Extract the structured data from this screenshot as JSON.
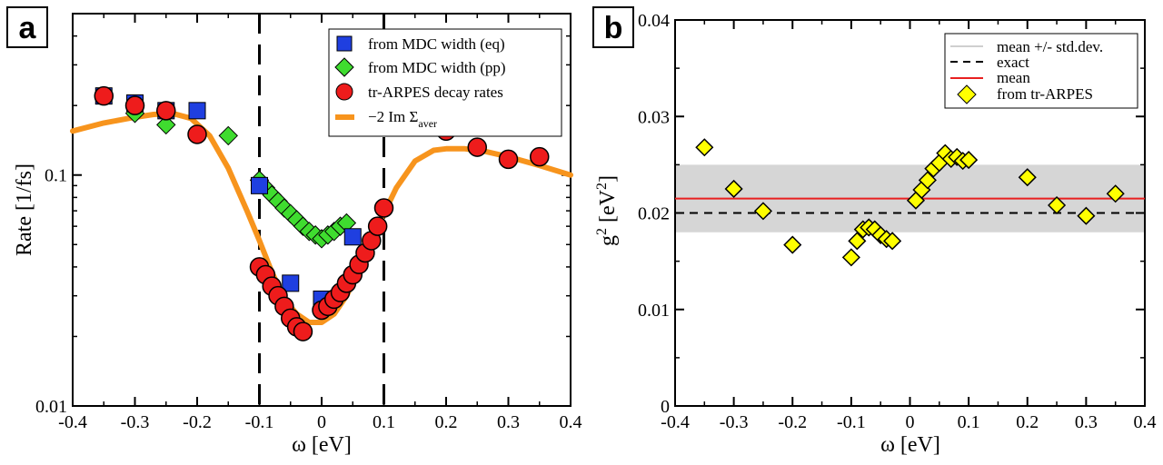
{
  "chart_data": [
    {
      "panel_label": "a",
      "type": "scatter",
      "yscale": "log",
      "xlabel": "ω [eV]",
      "ylabel": "Rate [1/fs]",
      "xlim": [
        -0.4,
        0.4
      ],
      "ylim": [
        0.01,
        0.5
      ],
      "xticks": [
        -0.4,
        -0.3,
        -0.2,
        -0.1,
        0,
        0.1,
        0.2,
        0.3,
        0.4
      ],
      "xtick_labels": [
        "-0.4",
        "-0.3",
        "-0.2",
        "-0.1",
        "0",
        "0.1",
        "0.2",
        "0.3",
        "0.4"
      ],
      "yticks": [
        0.01,
        0.1
      ],
      "ytick_labels": [
        "0.01",
        "0.1"
      ],
      "vlines": [
        -0.1,
        0.1
      ],
      "legend_position": "top-right",
      "series": [
        {
          "name": "from MDC width (eq)",
          "marker": "square",
          "color": "#1f3fe0",
          "x": [
            -0.35,
            -0.3,
            -0.25,
            -0.2,
            -0.1,
            -0.05,
            0.0,
            0.05
          ],
          "y": [
            0.22,
            0.205,
            0.19,
            0.19,
            0.09,
            0.034,
            0.029,
            0.054
          ]
        },
        {
          "name": "from MDC width (pp)",
          "marker": "diamond",
          "color": "#3fdc2f",
          "x": [
            -0.3,
            -0.25,
            -0.15,
            -0.1,
            -0.09,
            -0.08,
            -0.07,
            -0.06,
            -0.05,
            -0.04,
            -0.03,
            -0.02,
            -0.01,
            0.0,
            0.01,
            0.02,
            0.03,
            0.04
          ],
          "y": [
            0.185,
            0.165,
            0.148,
            0.095,
            0.088,
            0.082,
            0.077,
            0.072,
            0.068,
            0.064,
            0.06,
            0.057,
            0.055,
            0.053,
            0.055,
            0.057,
            0.06,
            0.062
          ]
        },
        {
          "name": "tr-ARPES decay rates",
          "marker": "circle",
          "color": "#ee1c1c",
          "x": [
            -0.35,
            -0.3,
            -0.25,
            -0.2,
            -0.1,
            -0.09,
            -0.08,
            -0.07,
            -0.06,
            -0.05,
            -0.04,
            -0.03,
            0.0,
            0.01,
            0.02,
            0.03,
            0.04,
            0.05,
            0.06,
            0.07,
            0.08,
            0.09,
            0.1,
            0.2,
            0.25,
            0.3,
            0.35
          ],
          "y": [
            0.22,
            0.2,
            0.19,
            0.15,
            0.04,
            0.037,
            0.033,
            0.03,
            0.027,
            0.024,
            0.022,
            0.021,
            0.026,
            0.027,
            0.029,
            0.031,
            0.034,
            0.037,
            0.041,
            0.046,
            0.052,
            0.06,
            0.072,
            0.155,
            0.132,
            0.117,
            0.12
          ]
        },
        {
          "name": "−2 Im Σ_aver",
          "marker": "line",
          "color": "#f7941d",
          "x": [
            -0.4,
            -0.35,
            -0.3,
            -0.27,
            -0.24,
            -0.21,
            -0.18,
            -0.15,
            -0.12,
            -0.1,
            -0.08,
            -0.06,
            -0.04,
            -0.02,
            0.0,
            0.02,
            0.04,
            0.06,
            0.08,
            0.1,
            0.12,
            0.15,
            0.18,
            0.2,
            0.23,
            0.26,
            0.3,
            0.35,
            0.4
          ],
          "y": [
            0.155,
            0.168,
            0.178,
            0.183,
            0.185,
            0.176,
            0.148,
            0.107,
            0.07,
            0.052,
            0.038,
            0.029,
            0.025,
            0.023,
            0.023,
            0.025,
            0.03,
            0.039,
            0.052,
            0.068,
            0.088,
            0.115,
            0.128,
            0.13,
            0.13,
            0.127,
            0.12,
            0.11,
            0.1
          ]
        }
      ],
      "legend": {
        "entries": [
          {
            "label": "from MDC width (eq)"
          },
          {
            "label": "from MDC width (pp)"
          },
          {
            "label": "tr-ARPES decay rates"
          },
          {
            "label_main": "−2 Im Σ",
            "label_sub": "aver"
          }
        ]
      }
    },
    {
      "panel_label": "b",
      "type": "scatter",
      "yscale": "linear",
      "xlabel": "ω [eV]",
      "ylabel_base": "g",
      "ylabel_sup": "2",
      "ylabel_mid": " [eV",
      "ylabel_end": "]",
      "xlim": [
        -0.4,
        0.4
      ],
      "ylim": [
        0,
        0.04
      ],
      "xticks": [
        -0.4,
        -0.3,
        -0.2,
        -0.1,
        0,
        0.1,
        0.2,
        0.3,
        0.4
      ],
      "xtick_labels": [
        "-0.4",
        "-0.3",
        "-0.2",
        "-0.1",
        "0",
        "0.1",
        "0.2",
        "0.3",
        "0.4"
      ],
      "yticks": [
        0,
        0.01,
        0.02,
        0.03,
        0.04
      ],
      "ytick_labels": [
        "0",
        "0.01",
        "0.02",
        "0.03",
        "0.04"
      ],
      "band": {
        "name": "mean +/- std.dev.",
        "low": 0.018,
        "high": 0.025,
        "color": "#d6d6d6"
      },
      "exact": {
        "name": "exact",
        "value": 0.02,
        "color": "#000000"
      },
      "mean": {
        "name": "mean",
        "value": 0.0215,
        "color": "#e82020"
      },
      "points": {
        "name": "from tr-ARPES",
        "color": "#ffff00",
        "x": [
          -0.35,
          -0.3,
          -0.25,
          -0.2,
          -0.1,
          -0.09,
          -0.08,
          -0.07,
          -0.06,
          -0.05,
          -0.04,
          -0.03,
          0.01,
          0.02,
          0.03,
          0.04,
          0.05,
          0.06,
          0.07,
          0.08,
          0.09,
          0.1,
          0.2,
          0.25,
          0.3,
          0.35
        ],
        "y": [
          0.0268,
          0.0225,
          0.0202,
          0.0167,
          0.0154,
          0.0171,
          0.0183,
          0.0185,
          0.0183,
          0.0177,
          0.0173,
          0.0171,
          0.0213,
          0.0224,
          0.0234,
          0.0246,
          0.0252,
          0.0262,
          0.0256,
          0.0258,
          0.0254,
          0.0255,
          0.0237,
          0.0208,
          0.0197,
          0.022
        ]
      },
      "legend_position": "top-right",
      "legend": {
        "entries": [
          {
            "label": "mean +/- std.dev."
          },
          {
            "label": "exact"
          },
          {
            "label": "mean"
          },
          {
            "label": "from tr-ARPES"
          }
        ]
      }
    }
  ]
}
